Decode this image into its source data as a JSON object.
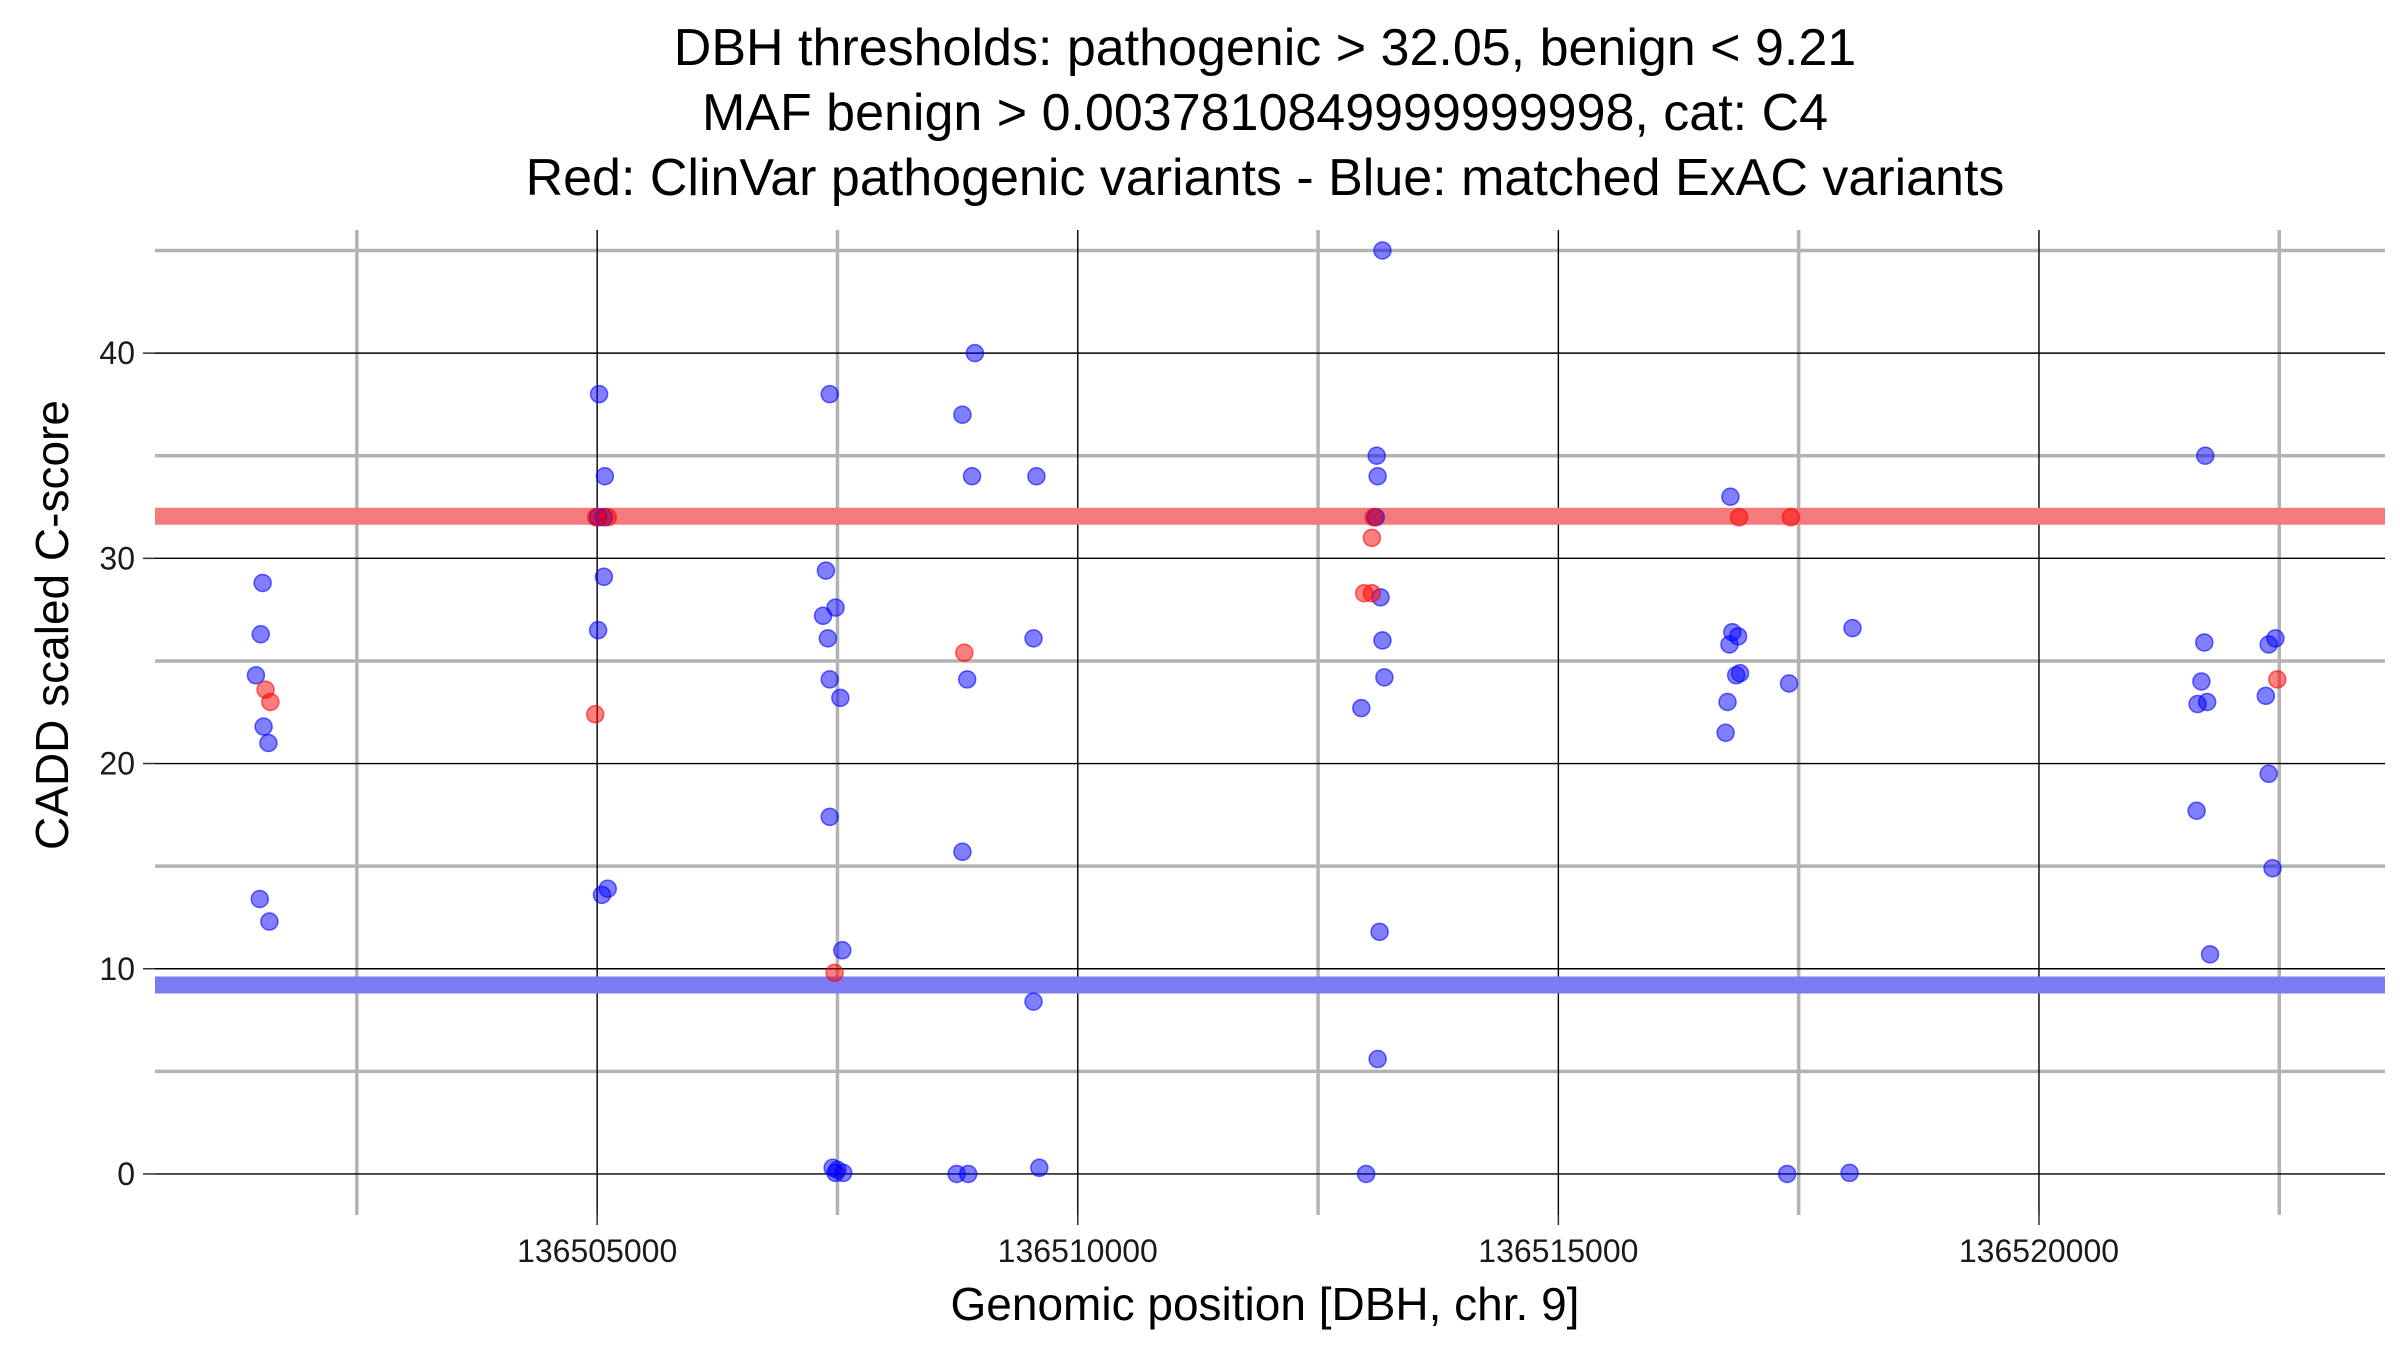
{
  "chart_data": {
    "type": "scatter",
    "title_lines": [
      "DBH thresholds: pathogenic > 32.05, benign < 9.21",
      "MAF benign > 0.0037810849999999998, cat: C4",
      "Red: ClinVar pathogenic variants - Blue: matched ExAC variants"
    ],
    "xlabel": "Genomic position [DBH, chr. 9]",
    "ylabel": "CADD scaled C-score",
    "xlim": [
      136500400,
      136523600
    ],
    "ylim": [
      -2,
      46
    ],
    "x_ticks": [
      136505000,
      136510000,
      136515000,
      136520000
    ],
    "x_tick_labels": [
      "136505000",
      "136510000",
      "136515000",
      "136520000"
    ],
    "x_major_grid": [
      136505000,
      136510000,
      136515000,
      136520000
    ],
    "x_minor_grid": [
      136502500,
      136507500,
      136512500,
      136517500,
      136522500
    ],
    "y_ticks": [
      0,
      10,
      20,
      30,
      40
    ],
    "y_tick_labels": [
      "0",
      "10",
      "20",
      "30",
      "40"
    ],
    "y_major_grid": [
      0,
      10,
      20,
      30,
      40
    ],
    "y_minor_grid": [
      5,
      15,
      25,
      35,
      45
    ],
    "grid": true,
    "colors": {
      "pathogenic": "#ff0000",
      "benign": "#0000ff",
      "pathogenic_line": "#f47b7b",
      "benign_line": "#7b7bf4",
      "major_grid": "#000000",
      "minor_grid": "#b3b3b3"
    },
    "thresholds": [
      {
        "series": "pathogenic",
        "y": 32.05
      },
      {
        "series": "benign",
        "y": 9.21
      }
    ],
    "series": [
      {
        "key": "benign",
        "points": [
          [
            136501450,
            24.3
          ],
          [
            136501520,
            28.8
          ],
          [
            136501500,
            26.3
          ],
          [
            136501530,
            21.8
          ],
          [
            136501580,
            21.0
          ],
          [
            136501490,
            13.4
          ],
          [
            136501590,
            12.3
          ],
          [
            136505020,
            38.0
          ],
          [
            136505080,
            34.0
          ],
          [
            136505070,
            29.1
          ],
          [
            136505010,
            26.5
          ],
          [
            136505010,
            32.0
          ],
          [
            136505070,
            32.0
          ],
          [
            136505050,
            13.6
          ],
          [
            136505110,
            13.9
          ],
          [
            136507380,
            29.4
          ],
          [
            136507350,
            27.2
          ],
          [
            136507400,
            26.1
          ],
          [
            136507480,
            27.6
          ],
          [
            136507420,
            24.1
          ],
          [
            136507530,
            23.2
          ],
          [
            136507420,
            38.0
          ],
          [
            136507420,
            17.4
          ],
          [
            136507550,
            10.9
          ],
          [
            136507450,
            0.3
          ],
          [
            136507500,
            0.2
          ],
          [
            136507480,
            0.05
          ],
          [
            136507560,
            0.05
          ],
          [
            136508800,
            37.0
          ],
          [
            136508930,
            40.0
          ],
          [
            136508900,
            34.0
          ],
          [
            136508850,
            24.1
          ],
          [
            136508800,
            15.7
          ],
          [
            136508740,
            0.0
          ],
          [
            136508860,
            0.0
          ],
          [
            136509570,
            34.0
          ],
          [
            136509540,
            26.1
          ],
          [
            136509540,
            8.4
          ],
          [
            136509600,
            0.3
          ],
          [
            136513170,
            45.0
          ],
          [
            136513110,
            35.0
          ],
          [
            136513120,
            34.0
          ],
          [
            136513100,
            32.0
          ],
          [
            136513150,
            28.1
          ],
          [
            136513170,
            26.0
          ],
          [
            136513190,
            24.2
          ],
          [
            136512950,
            22.7
          ],
          [
            136513140,
            11.8
          ],
          [
            136513120,
            5.6
          ],
          [
            136513000,
            0.0
          ],
          [
            136516790,
            33.0
          ],
          [
            136516780,
            25.8
          ],
          [
            136516810,
            26.4
          ],
          [
            136516870,
            26.2
          ],
          [
            136516850,
            24.3
          ],
          [
            136516890,
            24.4
          ],
          [
            136516760,
            23.0
          ],
          [
            136516740,
            21.5
          ],
          [
            136517400,
            23.9
          ],
          [
            136517380,
            0.0
          ],
          [
            136518060,
            26.6
          ],
          [
            136518030,
            0.05
          ],
          [
            136521730,
            35.0
          ],
          [
            136521720,
            25.9
          ],
          [
            136521690,
            24.0
          ],
          [
            136521650,
            22.9
          ],
          [
            136521750,
            23.0
          ],
          [
            136521640,
            17.7
          ],
          [
            136521780,
            10.7
          ],
          [
            136522390,
            25.8
          ],
          [
            136522460,
            26.1
          ],
          [
            136522360,
            23.3
          ],
          [
            136522390,
            19.5
          ],
          [
            136522430,
            14.9
          ]
        ]
      },
      {
        "key": "pathogenic",
        "points": [
          [
            136501550,
            23.6
          ],
          [
            136501600,
            23.0
          ],
          [
            136504980,
            22.4
          ],
          [
            136504990,
            32.0
          ],
          [
            136505110,
            32.0
          ],
          [
            136508820,
            25.4
          ],
          [
            136507470,
            9.8
          ],
          [
            136512980,
            28.3
          ],
          [
            136513060,
            28.3
          ],
          [
            136513060,
            31.0
          ],
          [
            136513080,
            32.0
          ],
          [
            136516880,
            32.0
          ],
          [
            136517420,
            32.0
          ],
          [
            136522480,
            24.1
          ]
        ]
      }
    ]
  }
}
